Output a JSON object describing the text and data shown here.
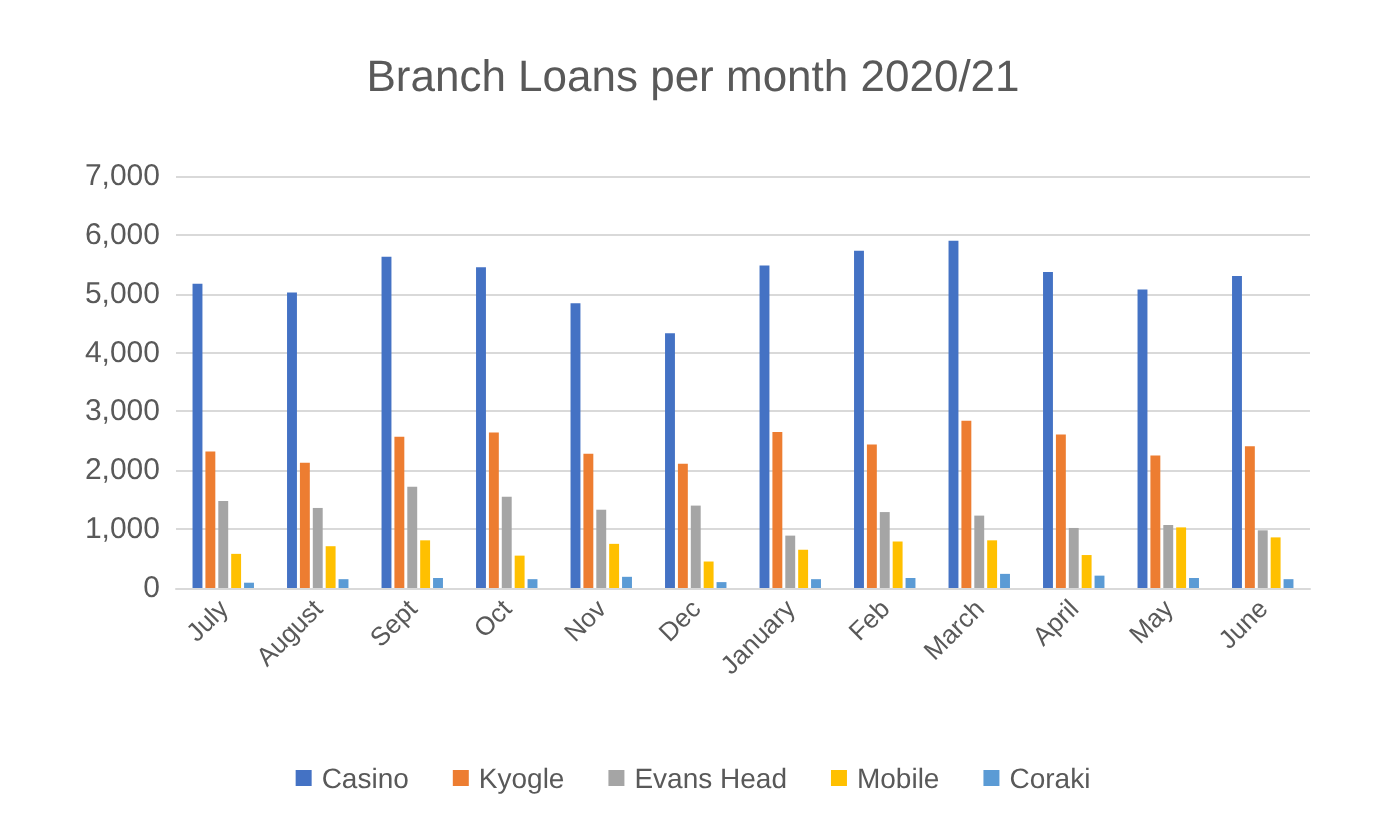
{
  "chart_data": {
    "type": "bar",
    "title": "Branch Loans per month 2020/21",
    "categories": [
      "July",
      "August",
      "Sept",
      "Oct",
      "Nov",
      "Dec",
      "January",
      "Feb",
      "March",
      "April",
      "May",
      "June"
    ],
    "series": [
      {
        "name": "Casino",
        "color": "#4472c4",
        "values": [
          5170,
          5020,
          5630,
          5450,
          4840,
          4330,
          5480,
          5730,
          5900,
          5370,
          5070,
          5300
        ]
      },
      {
        "name": "Kyogle",
        "color": "#ed7d31",
        "values": [
          2320,
          2130,
          2570,
          2640,
          2280,
          2110,
          2650,
          2440,
          2840,
          2610,
          2250,
          2410
        ]
      },
      {
        "name": "Evans Head",
        "color": "#a5a5a5",
        "values": [
          1480,
          1360,
          1720,
          1550,
          1330,
          1400,
          890,
          1290,
          1230,
          1020,
          1070,
          980
        ]
      },
      {
        "name": "Mobile",
        "color": "#ffc000",
        "values": [
          580,
          710,
          810,
          550,
          750,
          450,
          650,
          790,
          810,
          560,
          1030,
          860
        ]
      },
      {
        "name": "Coraki",
        "color": "#5b9bd5",
        "values": [
          90,
          150,
          170,
          150,
          190,
          100,
          150,
          170,
          240,
          210,
          170,
          150
        ]
      }
    ],
    "ylim": [
      0,
      7000
    ],
    "yticks": [
      {
        "value": 0,
        "label": "0"
      },
      {
        "value": 1000,
        "label": "1,000"
      },
      {
        "value": 2000,
        "label": "2,000"
      },
      {
        "value": 3000,
        "label": "3,000"
      },
      {
        "value": 4000,
        "label": "4,000"
      },
      {
        "value": 5000,
        "label": "5,000"
      },
      {
        "value": 6000,
        "label": "6,000"
      },
      {
        "value": 7000,
        "label": "7,000"
      }
    ],
    "grid": "y",
    "legend": "bottom"
  }
}
